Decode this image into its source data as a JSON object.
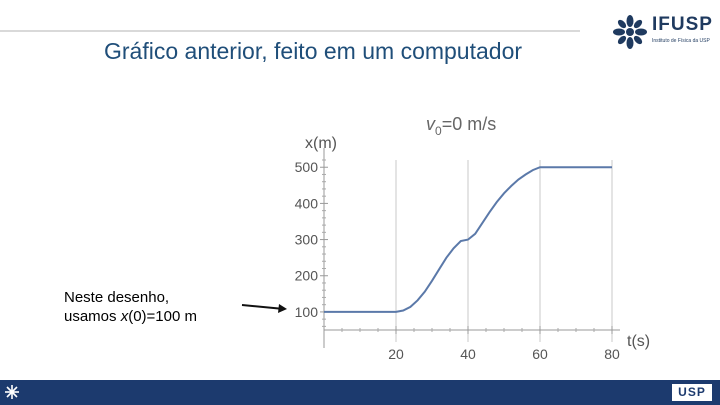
{
  "slide": {
    "title": "Gráfico anterior, feito em um computador",
    "logo_text": "IFUSP",
    "logo_subtitle": "Instituto de Física da USP",
    "note_line1": "Neste desenho,",
    "note_line2_prefix": "usamos ",
    "note_line2_var": "x",
    "note_line2_suffix": "(0)=100 m",
    "footer_logo": "USP"
  },
  "colors": {
    "title": "#1f4e79",
    "curve": "#5b79a9",
    "grid": "#c8c8c8",
    "footer": "#1c3a6e"
  },
  "chart_data": {
    "type": "line",
    "title": "v0=0 m/s",
    "title_main": "v",
    "title_sub": "0",
    "title_rest": "=0 m/s",
    "xlabel": "t(s)",
    "ylabel": "x(m)",
    "xlim": [
      0,
      80
    ],
    "ylim": [
      50,
      520
    ],
    "xticks": [
      20,
      40,
      60,
      80
    ],
    "yticks": [
      100,
      200,
      300,
      400,
      500
    ],
    "gridlines_x": [
      20,
      40,
      60,
      80
    ],
    "series": [
      {
        "x": [
          0,
          2,
          4,
          6,
          8,
          10,
          12,
          14,
          16,
          18,
          20,
          22,
          24,
          26,
          28,
          30,
          32,
          34,
          36,
          38,
          40,
          42,
          44,
          46,
          48,
          50,
          52,
          54,
          56,
          58,
          60,
          62,
          64,
          66,
          68,
          70,
          72,
          74,
          76,
          78,
          80
        ],
        "values": [
          100,
          100,
          100,
          100,
          100,
          100,
          100,
          100,
          100,
          100,
          100,
          104,
          114,
          132,
          156,
          186,
          218,
          250,
          276,
          296,
          300,
          316,
          346,
          376,
          404,
          428,
          448,
          466,
          480,
          492,
          500,
          500,
          500,
          500,
          500,
          500,
          500,
          500,
          500,
          500,
          500
        ]
      }
    ]
  }
}
